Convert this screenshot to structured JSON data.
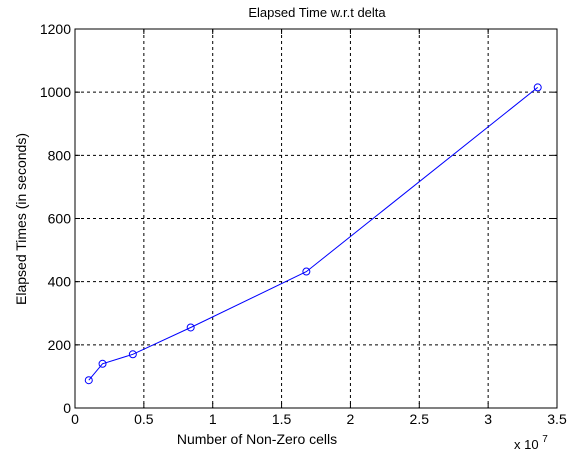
{
  "chart_data": {
    "type": "line",
    "title": "Elapsed Time w.r.t delta",
    "xlabel": "Number of Non-Zero cells",
    "ylabel": "Elapsed Times (in seconds)",
    "x_exponent": {
      "base": "x 10",
      "power": "7"
    },
    "xlim": [
      0,
      3.5
    ],
    "ylim": [
      0,
      1200
    ],
    "x_ticks": [
      0,
      0.5,
      1,
      1.5,
      2,
      2.5,
      3,
      3.5
    ],
    "x_tick_labels": [
      "0",
      "0.5",
      "1",
      "1.5",
      "2",
      "2.5",
      "3",
      "3.5"
    ],
    "y_ticks": [
      0,
      200,
      400,
      600,
      800,
      1000,
      1200
    ],
    "y_tick_labels": [
      "0",
      "200",
      "400",
      "600",
      "800",
      "1000",
      "1200"
    ],
    "grid": true,
    "series": [
      {
        "x": [
          0.1,
          0.2,
          0.42,
          0.84,
          1.68,
          3.36
        ],
        "y": [
          88,
          140,
          170,
          255,
          432,
          1015
        ],
        "color": "#0000ff",
        "marker": "circle-open"
      }
    ]
  }
}
